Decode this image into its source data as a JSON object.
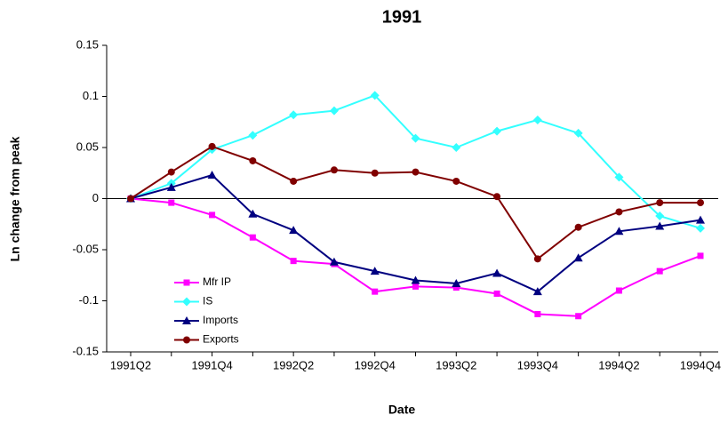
{
  "chart_data": {
    "type": "line",
    "title": "1991",
    "x_label": "Date",
    "y_label": "Ln change from peak",
    "categories": [
      "1991Q2",
      null,
      "1991Q4",
      null,
      "1992Q2",
      null,
      "1992Q4",
      null,
      "1993Q2",
      null,
      "1993Q4",
      null,
      "1994Q2",
      null,
      "1994Q4"
    ],
    "series": [
      {
        "name": "Mfr IP",
        "color": "#ff00ff",
        "marker": "square",
        "values": [
          0,
          -0.004,
          -0.016,
          -0.038,
          -0.061,
          -0.064,
          -0.091,
          -0.086,
          -0.087,
          -0.093,
          -0.113,
          -0.115,
          -0.09,
          -0.071,
          -0.056
        ]
      },
      {
        "name": "IS",
        "color": "#33ffff",
        "marker": "diamond",
        "values": [
          0,
          0.015,
          0.048,
          0.062,
          0.082,
          0.086,
          0.101,
          0.059,
          0.05,
          0.066,
          0.077,
          0.064,
          0.021,
          -0.017,
          -0.029
        ]
      },
      {
        "name": "Imports",
        "color": "#000080",
        "marker": "triangle",
        "values": [
          0,
          0.011,
          0.023,
          -0.015,
          -0.031,
          -0.062,
          -0.071,
          -0.08,
          -0.083,
          -0.073,
          -0.091,
          -0.058,
          -0.032,
          -0.027,
          -0.021
        ]
      },
      {
        "name": "Exports",
        "color": "#800000",
        "marker": "circle",
        "values": [
          0,
          0.026,
          0.051,
          0.037,
          0.017,
          0.028,
          0.025,
          0.026,
          0.017,
          0.002,
          -0.059,
          -0.028,
          -0.013,
          -0.004,
          -0.004
        ]
      }
    ],
    "ylim": [
      -0.15,
      0.15
    ],
    "yticks": [
      0.15,
      0.1,
      0.05,
      0,
      -0.05,
      -0.1,
      -0.15
    ],
    "legend": "lower-left"
  }
}
